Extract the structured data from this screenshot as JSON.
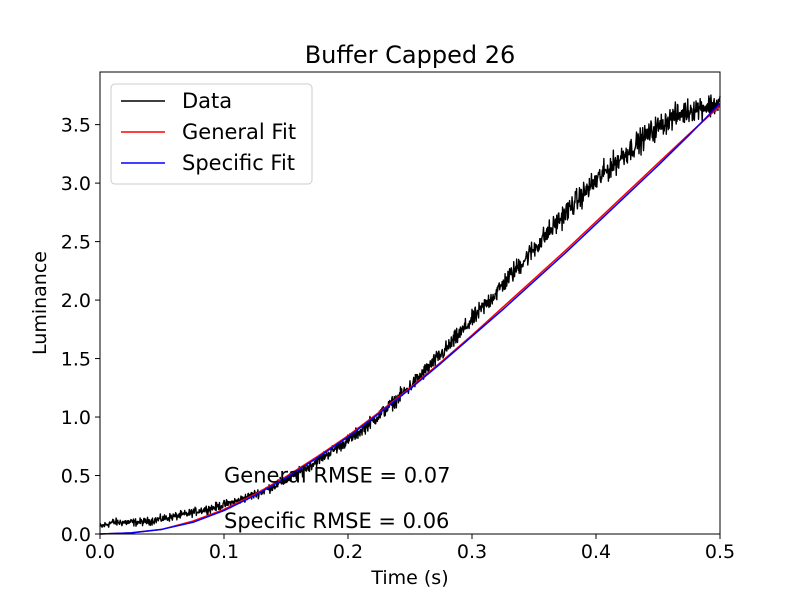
{
  "chart_data": {
    "type": "line",
    "title": "Buffer Capped 26",
    "xlabel": "Time (s)",
    "ylabel": "Luminance",
    "xlim": [
      0.0,
      0.5
    ],
    "ylim": [
      0.0,
      3.95
    ],
    "x_ticks": [
      "0.0",
      "0.1",
      "0.2",
      "0.3",
      "0.4",
      "0.5"
    ],
    "y_ticks": [
      "0.0",
      "0.5",
      "1.0",
      "1.5",
      "2.0",
      "2.5",
      "3.0",
      "3.5"
    ],
    "grid": false,
    "legend_position": "top-left",
    "series": [
      {
        "name": "Data",
        "color": "#000000",
        "noisy": true,
        "x": [
          0.0,
          0.01,
          0.02,
          0.03,
          0.04,
          0.05,
          0.06,
          0.07,
          0.08,
          0.09,
          0.1,
          0.11,
          0.12,
          0.13,
          0.14,
          0.15,
          0.16,
          0.17,
          0.18,
          0.19,
          0.2,
          0.21,
          0.22,
          0.23,
          0.24,
          0.25,
          0.26,
          0.27,
          0.28,
          0.29,
          0.3,
          0.31,
          0.32,
          0.33,
          0.34,
          0.35,
          0.36,
          0.37,
          0.38,
          0.39,
          0.4,
          0.41,
          0.42,
          0.43,
          0.44,
          0.45,
          0.46,
          0.47,
          0.48,
          0.49,
          0.5
        ],
        "y": [
          0.06,
          0.1,
          0.1,
          0.1,
          0.11,
          0.13,
          0.15,
          0.17,
          0.2,
          0.22,
          0.25,
          0.28,
          0.32,
          0.36,
          0.41,
          0.46,
          0.52,
          0.59,
          0.66,
          0.73,
          0.8,
          0.88,
          0.97,
          1.06,
          1.16,
          1.26,
          1.37,
          1.48,
          1.59,
          1.71,
          1.83,
          1.95,
          2.07,
          2.2,
          2.32,
          2.44,
          2.56,
          2.68,
          2.8,
          2.91,
          3.02,
          3.12,
          3.22,
          3.31,
          3.4,
          3.48,
          3.55,
          3.6,
          3.64,
          3.66,
          3.68
        ]
      },
      {
        "name": "General Fit",
        "color": "#ff0000",
        "x": [
          0.0,
          0.025,
          0.05,
          0.075,
          0.1,
          0.125,
          0.15,
          0.175,
          0.2,
          0.225,
          0.25,
          0.275,
          0.3,
          0.325,
          0.35,
          0.375,
          0.4,
          0.425,
          0.45,
          0.475,
          0.5
        ],
        "y": [
          0.0,
          0.01,
          0.04,
          0.11,
          0.21,
          0.34,
          0.49,
          0.66,
          0.84,
          1.04,
          1.25,
          1.47,
          1.7,
          1.94,
          2.18,
          2.42,
          2.67,
          2.92,
          3.17,
          3.42,
          3.66
        ]
      },
      {
        "name": "Specific Fit",
        "color": "#0000ff",
        "x": [
          0.0,
          0.025,
          0.05,
          0.075,
          0.1,
          0.125,
          0.15,
          0.175,
          0.2,
          0.225,
          0.25,
          0.275,
          0.3,
          0.325,
          0.35,
          0.375,
          0.4,
          0.425,
          0.45,
          0.475,
          0.5
        ],
        "y": [
          0.0,
          0.01,
          0.04,
          0.1,
          0.2,
          0.33,
          0.48,
          0.65,
          0.83,
          1.03,
          1.24,
          1.46,
          1.69,
          1.92,
          2.16,
          2.4,
          2.65,
          2.9,
          3.15,
          3.41,
          3.68
        ]
      }
    ],
    "annotations": [
      {
        "text": "General RMSE = 0.07",
        "x": 0.1,
        "y": 0.44
      },
      {
        "text": "Specific RMSE = 0.06",
        "x": 0.1,
        "y": 0.05
      }
    ]
  }
}
